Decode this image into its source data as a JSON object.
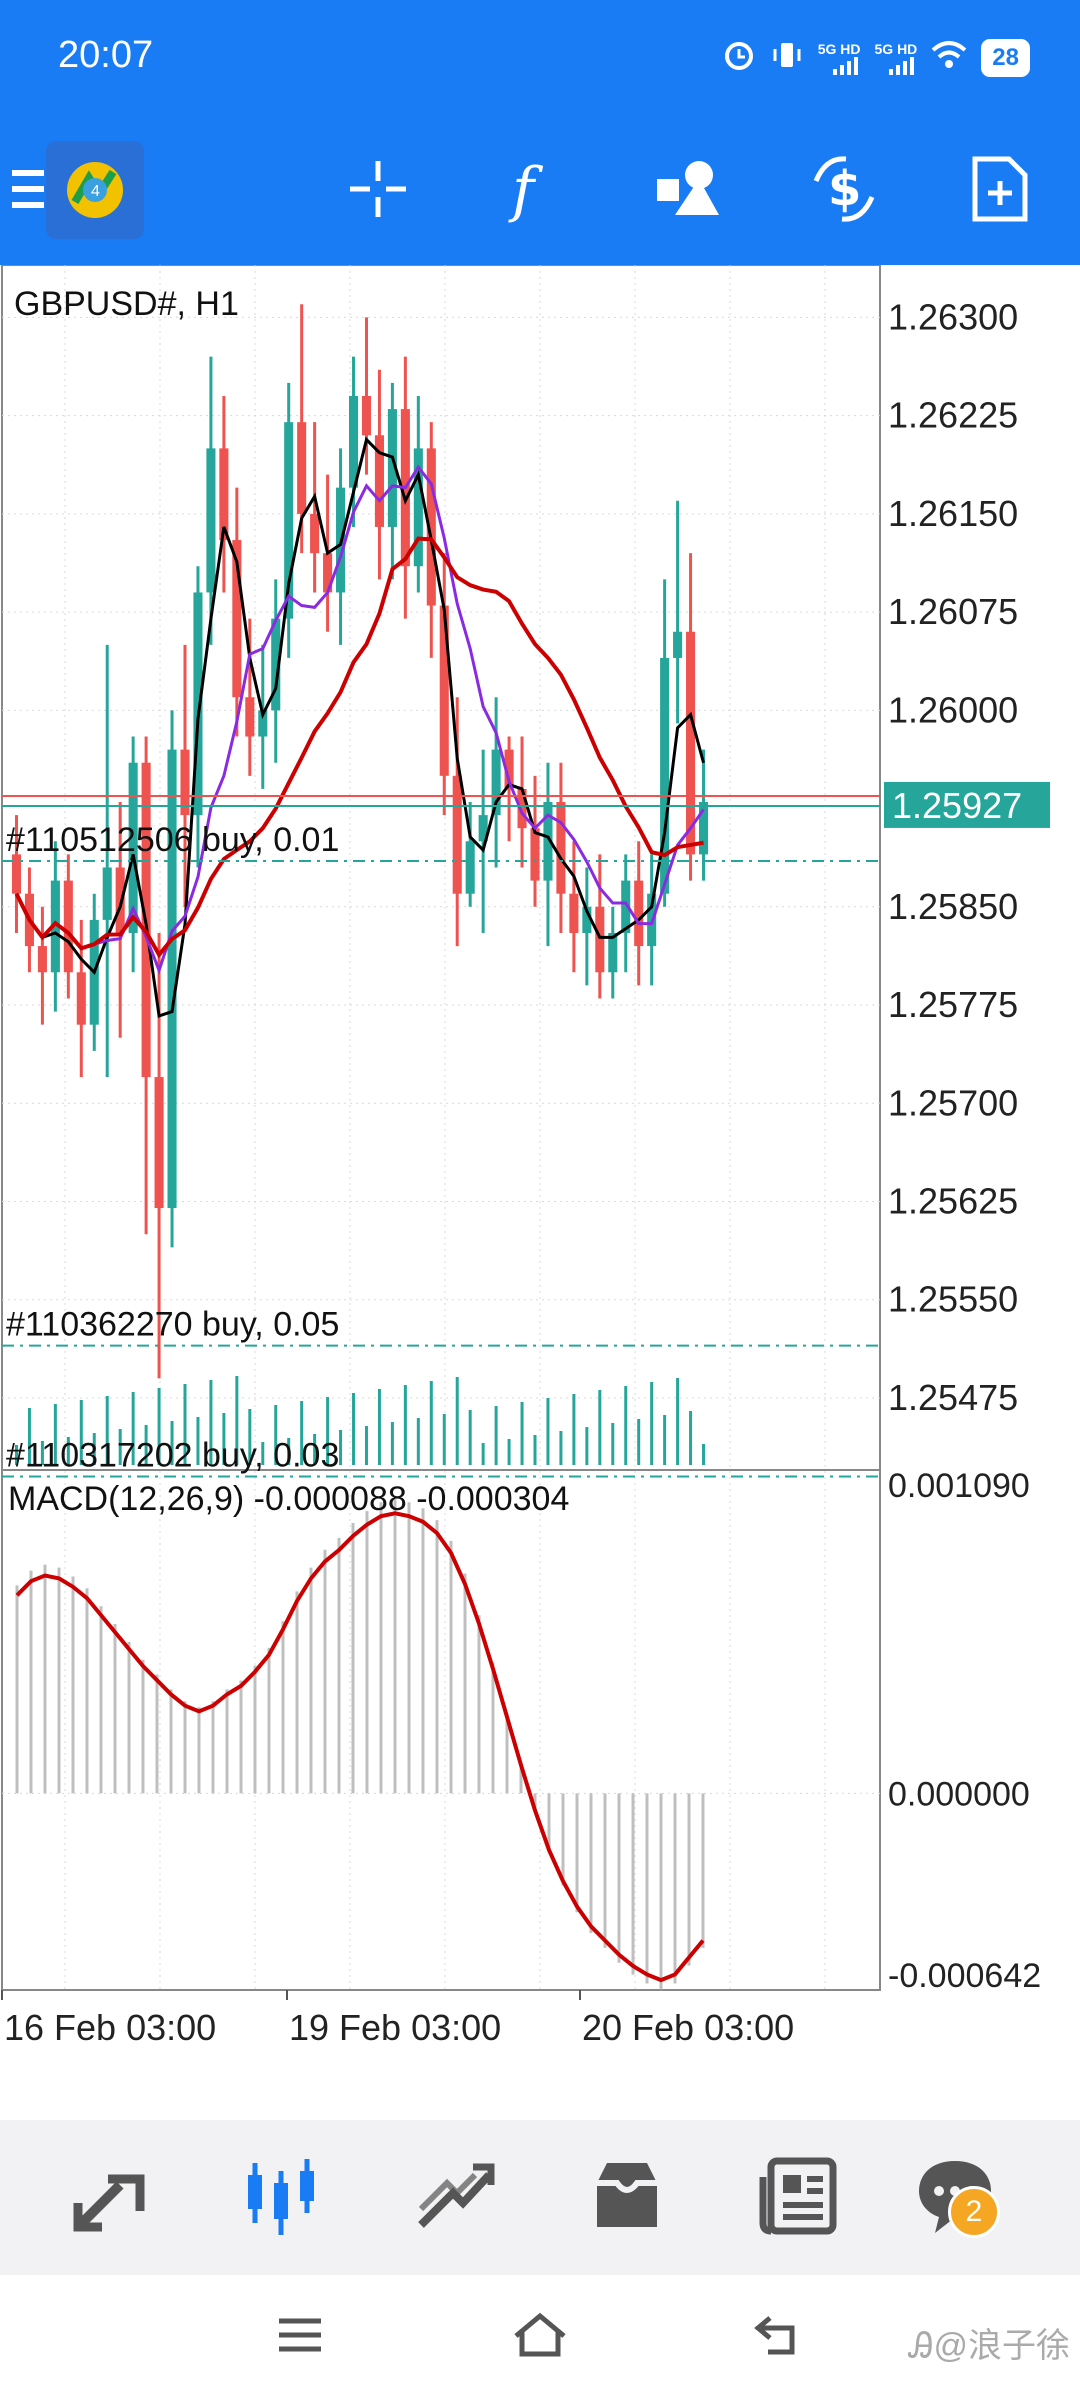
{
  "status_bar": {
    "time": "20:07",
    "net1": "5G HD",
    "net2": "5G HD",
    "battery": "28"
  },
  "toolbar": {
    "items": [
      "menu-icon",
      "app-logo",
      "crosshair-icon",
      "indicators-icon",
      "objects-icon",
      "trade-icon",
      "new-order-icon"
    ]
  },
  "chart": {
    "symbol": "GBPUSD#, H1",
    "current_price": "1.25927",
    "price_levels": [
      "1.26300",
      "1.26225",
      "1.26150",
      "1.26075",
      "1.26000",
      "1.25850",
      "1.25775",
      "1.25700",
      "1.25625",
      "1.25550",
      "1.25475"
    ],
    "orders": [
      {
        "label": "#110512506 buy, 0.01",
        "price": 1.25885
      },
      {
        "label": "#110362270 buy, 0.05",
        "price": 1.25515
      },
      {
        "label": "#110317202 buy, 0.03",
        "price": 1.25415
      }
    ],
    "macd_label": "MACD(12,26,9) -0.000088 -0.000304",
    "macd_levels": [
      "0.001090",
      "0.000000",
      "-0.000642"
    ],
    "time_labels": [
      "16 Feb 03:00",
      "19 Feb 03:00",
      "20 Feb 03:00"
    ],
    "colors": {
      "bull": "#26a69a",
      "bear": "#ef5350",
      "ma_fast": "#000000",
      "ma_mid": "#8a2be2",
      "ma_slow": "#cc0000",
      "grid": "#d9d9d9",
      "accent": "#1a7cf5"
    }
  },
  "chart_data": {
    "type": "candlestick",
    "title": "GBPUSD#, H1",
    "ylim": [
      1.2542,
      1.2634
    ],
    "macd_ylim": [
      -0.000642,
      0.00109
    ],
    "x_ticks": [
      "16 Feb 03:00",
      "19 Feb 03:00",
      "20 Feb 03:00"
    ],
    "candles": [
      [
        1.2589,
        1.2592,
        1.2583,
        1.2586
      ],
      [
        1.2586,
        1.2588,
        1.258,
        1.2582
      ],
      [
        1.2582,
        1.2585,
        1.2576,
        1.258
      ],
      [
        1.258,
        1.259,
        1.2577,
        1.2587
      ],
      [
        1.2587,
        1.2589,
        1.2578,
        1.258
      ],
      [
        1.258,
        1.2584,
        1.2572,
        1.2576
      ],
      [
        1.2576,
        1.2586,
        1.2574,
        1.2584
      ],
      [
        1.2584,
        1.2605,
        1.2572,
        1.2588
      ],
      [
        1.2588,
        1.2593,
        1.2575,
        1.2583
      ],
      [
        1.2583,
        1.2598,
        1.258,
        1.2596
      ],
      [
        1.2596,
        1.2598,
        1.256,
        1.2572
      ],
      [
        1.2572,
        1.2583,
        1.2549,
        1.2562
      ],
      [
        1.2562,
        1.26,
        1.2559,
        1.2597
      ],
      [
        1.2597,
        1.2605,
        1.2585,
        1.2592
      ],
      [
        1.2592,
        1.2611,
        1.2588,
        1.2609
      ],
      [
        1.2609,
        1.2627,
        1.2605,
        1.262
      ],
      [
        1.262,
        1.2624,
        1.2609,
        1.2613
      ],
      [
        1.2613,
        1.2617,
        1.2598,
        1.2601
      ],
      [
        1.2601,
        1.2607,
        1.2595,
        1.2598
      ],
      [
        1.2598,
        1.2605,
        1.2594,
        1.26
      ],
      [
        1.26,
        1.261,
        1.2596,
        1.2607
      ],
      [
        1.2607,
        1.2625,
        1.2604,
        1.2622
      ],
      [
        1.2622,
        1.2631,
        1.2612,
        1.2615
      ],
      [
        1.2615,
        1.2622,
        1.2609,
        1.2612
      ],
      [
        1.2612,
        1.2618,
        1.2606,
        1.2609
      ],
      [
        1.2609,
        1.262,
        1.2605,
        1.2617
      ],
      [
        1.2617,
        1.2627,
        1.2614,
        1.2624
      ],
      [
        1.2624,
        1.263,
        1.2618,
        1.2621
      ],
      [
        1.2621,
        1.2626,
        1.261,
        1.2614
      ],
      [
        1.2614,
        1.2625,
        1.261,
        1.2623
      ],
      [
        1.2623,
        1.2627,
        1.2607,
        1.2611
      ],
      [
        1.2611,
        1.2624,
        1.2609,
        1.262
      ],
      [
        1.262,
        1.2622,
        1.2604,
        1.2608
      ],
      [
        1.2608,
        1.2612,
        1.2592,
        1.2595
      ],
      [
        1.2595,
        1.2601,
        1.2582,
        1.2586
      ],
      [
        1.2586,
        1.2593,
        1.2585,
        1.259
      ],
      [
        1.259,
        1.2597,
        1.2583,
        1.2592
      ],
      [
        1.2592,
        1.2601,
        1.2588,
        1.2597
      ],
      [
        1.2597,
        1.2598,
        1.259,
        1.2594
      ],
      [
        1.2594,
        1.2598,
        1.2588,
        1.2591
      ],
      [
        1.2591,
        1.2595,
        1.2585,
        1.2587
      ],
      [
        1.2587,
        1.2596,
        1.2582,
        1.2593
      ],
      [
        1.2593,
        1.2596,
        1.2583,
        1.2586
      ],
      [
        1.2586,
        1.259,
        1.258,
        1.2583
      ],
      [
        1.2583,
        1.2588,
        1.2579,
        1.2585
      ],
      [
        1.2585,
        1.2589,
        1.2578,
        1.258
      ],
      [
        1.258,
        1.2585,
        1.2578,
        1.2583
      ],
      [
        1.2583,
        1.2589,
        1.258,
        1.2587
      ],
      [
        1.2587,
        1.259,
        1.2579,
        1.2582
      ],
      [
        1.2582,
        1.2589,
        1.2579,
        1.2586
      ],
      [
        1.2586,
        1.261,
        1.2585,
        1.2604
      ],
      [
        1.2604,
        1.2616,
        1.2599,
        1.2606
      ],
      [
        1.2606,
        1.2612,
        1.2587,
        1.2589
      ],
      [
        1.2589,
        1.2597,
        1.2587,
        1.2593
      ]
    ],
    "macd_signal": [
      0.0007,
      0.00075,
      0.00077,
      0.00076,
      0.00073,
      0.00069,
      0.00063,
      0.00057,
      0.00051,
      0.00045,
      0.0004,
      0.00035,
      0.00031,
      0.00029,
      0.00031,
      0.00035,
      0.00038,
      0.00043,
      0.00049,
      0.00058,
      0.00068,
      0.00076,
      0.00082,
      0.00086,
      0.00091,
      0.00095,
      0.00098,
      0.00099,
      0.00098,
      0.00096,
      0.00092,
      0.00085,
      0.00074,
      0.0006,
      0.00044,
      0.00027,
      0.0001,
      -6e-05,
      -0.0002,
      -0.00031,
      -0.0004,
      -0.00047,
      -0.00052,
      -0.00057,
      -0.00061,
      -0.00064,
      -0.00066,
      -0.00064,
      -0.00058,
      -0.00052
    ]
  },
  "bottom_nav": {
    "items": [
      "quotes-icon",
      "charts-icon",
      "trade-icon",
      "history-icon",
      "news-icon",
      "messages-icon"
    ],
    "badge": "2"
  },
  "system_nav": {
    "items": [
      "menu-nav-icon",
      "home-nav-icon",
      "back-nav-icon"
    ]
  },
  "watermark": "Ꭿ@浪子徐"
}
